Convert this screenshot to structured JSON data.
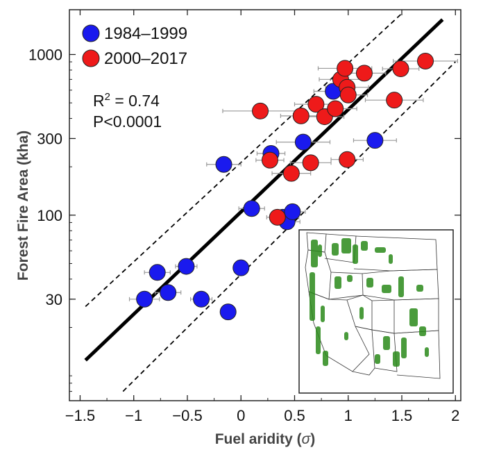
{
  "chart_data": {
    "type": "scatter",
    "xlabel_prefix": "Fuel aridity (",
    "xlabel_symbol": "σ",
    "xlabel_suffix": ")",
    "ylabel": "Forest Fire Area (kha)",
    "xlim": [
      -1.6,
      2.05
    ],
    "ylim": [
      7,
      1900
    ],
    "yscale": "log",
    "x_ticks": [
      -1.5,
      -1,
      -0.5,
      0,
      0.5,
      1,
      1.5,
      2
    ],
    "x_tick_labels": [
      "−1.5",
      "−1",
      "−0.5",
      "0",
      "0.5",
      "1",
      "1.5",
      "2"
    ],
    "y_ticks": [
      30,
      100,
      300,
      1000
    ],
    "y_tick_labels": [
      "30",
      "100",
      "300",
      "1000"
    ],
    "legend_position": "top-left",
    "stats": {
      "r2_base": "R",
      "r2_exp": "2",
      "r2_value": " = 0.74",
      "p_value": "P<0.0001"
    },
    "fit_line": {
      "x": [
        -1.45,
        1.88
      ],
      "y": [
        12.5,
        1650
      ]
    },
    "confidence_band": {
      "upper": {
        "x": [
          -1.45,
          1.5
        ],
        "y": [
          27,
          1800
        ]
      },
      "lower": {
        "x": [
          -1.1,
          2.0
        ],
        "y": [
          8,
          900
        ]
      }
    },
    "series": [
      {
        "name": "1984–1999",
        "color": "#1a1aee",
        "points": [
          {
            "x": -0.9,
            "y": 30,
            "xerr": 0.14
          },
          {
            "x": -0.78,
            "y": 44,
            "xerr": 0.12
          },
          {
            "x": -0.68,
            "y": 33,
            "xerr": 0.12
          },
          {
            "x": -0.51,
            "y": 48,
            "xerr": 0.1
          },
          {
            "x": -0.37,
            "y": 30,
            "xerr": 0.1
          },
          {
            "x": -0.12,
            "y": 25,
            "xerr": 0.07
          },
          {
            "x": 0.0,
            "y": 47,
            "xerr": 0.06
          },
          {
            "x": -0.16,
            "y": 207,
            "xerr": 0.16
          },
          {
            "x": 0.1,
            "y": 110,
            "xerr": 0.12
          },
          {
            "x": 0.28,
            "y": 242,
            "xerr": 0.13
          },
          {
            "x": 0.39,
            "y": 97,
            "xerr": 0.15
          },
          {
            "x": 0.43,
            "y": 91,
            "xerr": 0.12
          },
          {
            "x": 0.48,
            "y": 105,
            "xerr": 0.12
          },
          {
            "x": 0.58,
            "y": 285,
            "xerr": 0.25
          },
          {
            "x": 0.86,
            "y": 590,
            "xerr": 0.18
          },
          {
            "x": 1.25,
            "y": 292,
            "xerr": 0.2
          }
        ]
      },
      {
        "name": "2000–2017",
        "color": "#ee1a1a",
        "points": [
          {
            "x": 0.18,
            "y": 445,
            "xerr": 0.35
          },
          {
            "x": 0.27,
            "y": 220,
            "xerr": 0.13
          },
          {
            "x": 0.34,
            "y": 97,
            "xerr": 0.07
          },
          {
            "x": 0.47,
            "y": 182,
            "xerr": 0.18
          },
          {
            "x": 0.56,
            "y": 415,
            "xerr": 0.19
          },
          {
            "x": 0.65,
            "y": 212,
            "xerr": 0.19
          },
          {
            "x": 0.7,
            "y": 490,
            "xerr": 0.2
          },
          {
            "x": 0.78,
            "y": 410,
            "xerr": 0.18
          },
          {
            "x": 0.88,
            "y": 460,
            "xerr": 0.2
          },
          {
            "x": 0.93,
            "y": 700,
            "xerr": 0.2
          },
          {
            "x": 0.97,
            "y": 820,
            "xerr": 0.25
          },
          {
            "x": 0.99,
            "y": 625,
            "xerr": 0.2
          },
          {
            "x": 1.0,
            "y": 560,
            "xerr": 0.18
          },
          {
            "x": 0.99,
            "y": 222,
            "xerr": 0.15
          },
          {
            "x": 1.15,
            "y": 765,
            "xerr": 0.2
          },
          {
            "x": 1.43,
            "y": 520,
            "xerr": 0.27
          },
          {
            "x": 1.49,
            "y": 815,
            "xerr": 0.17
          },
          {
            "x": 1.72,
            "y": 910,
            "xerr": 0.3
          }
        ]
      }
    ]
  },
  "inset_map": {
    "description_icon": "western-us-forest-map-icon",
    "forest_color": "#2a8a1a"
  }
}
